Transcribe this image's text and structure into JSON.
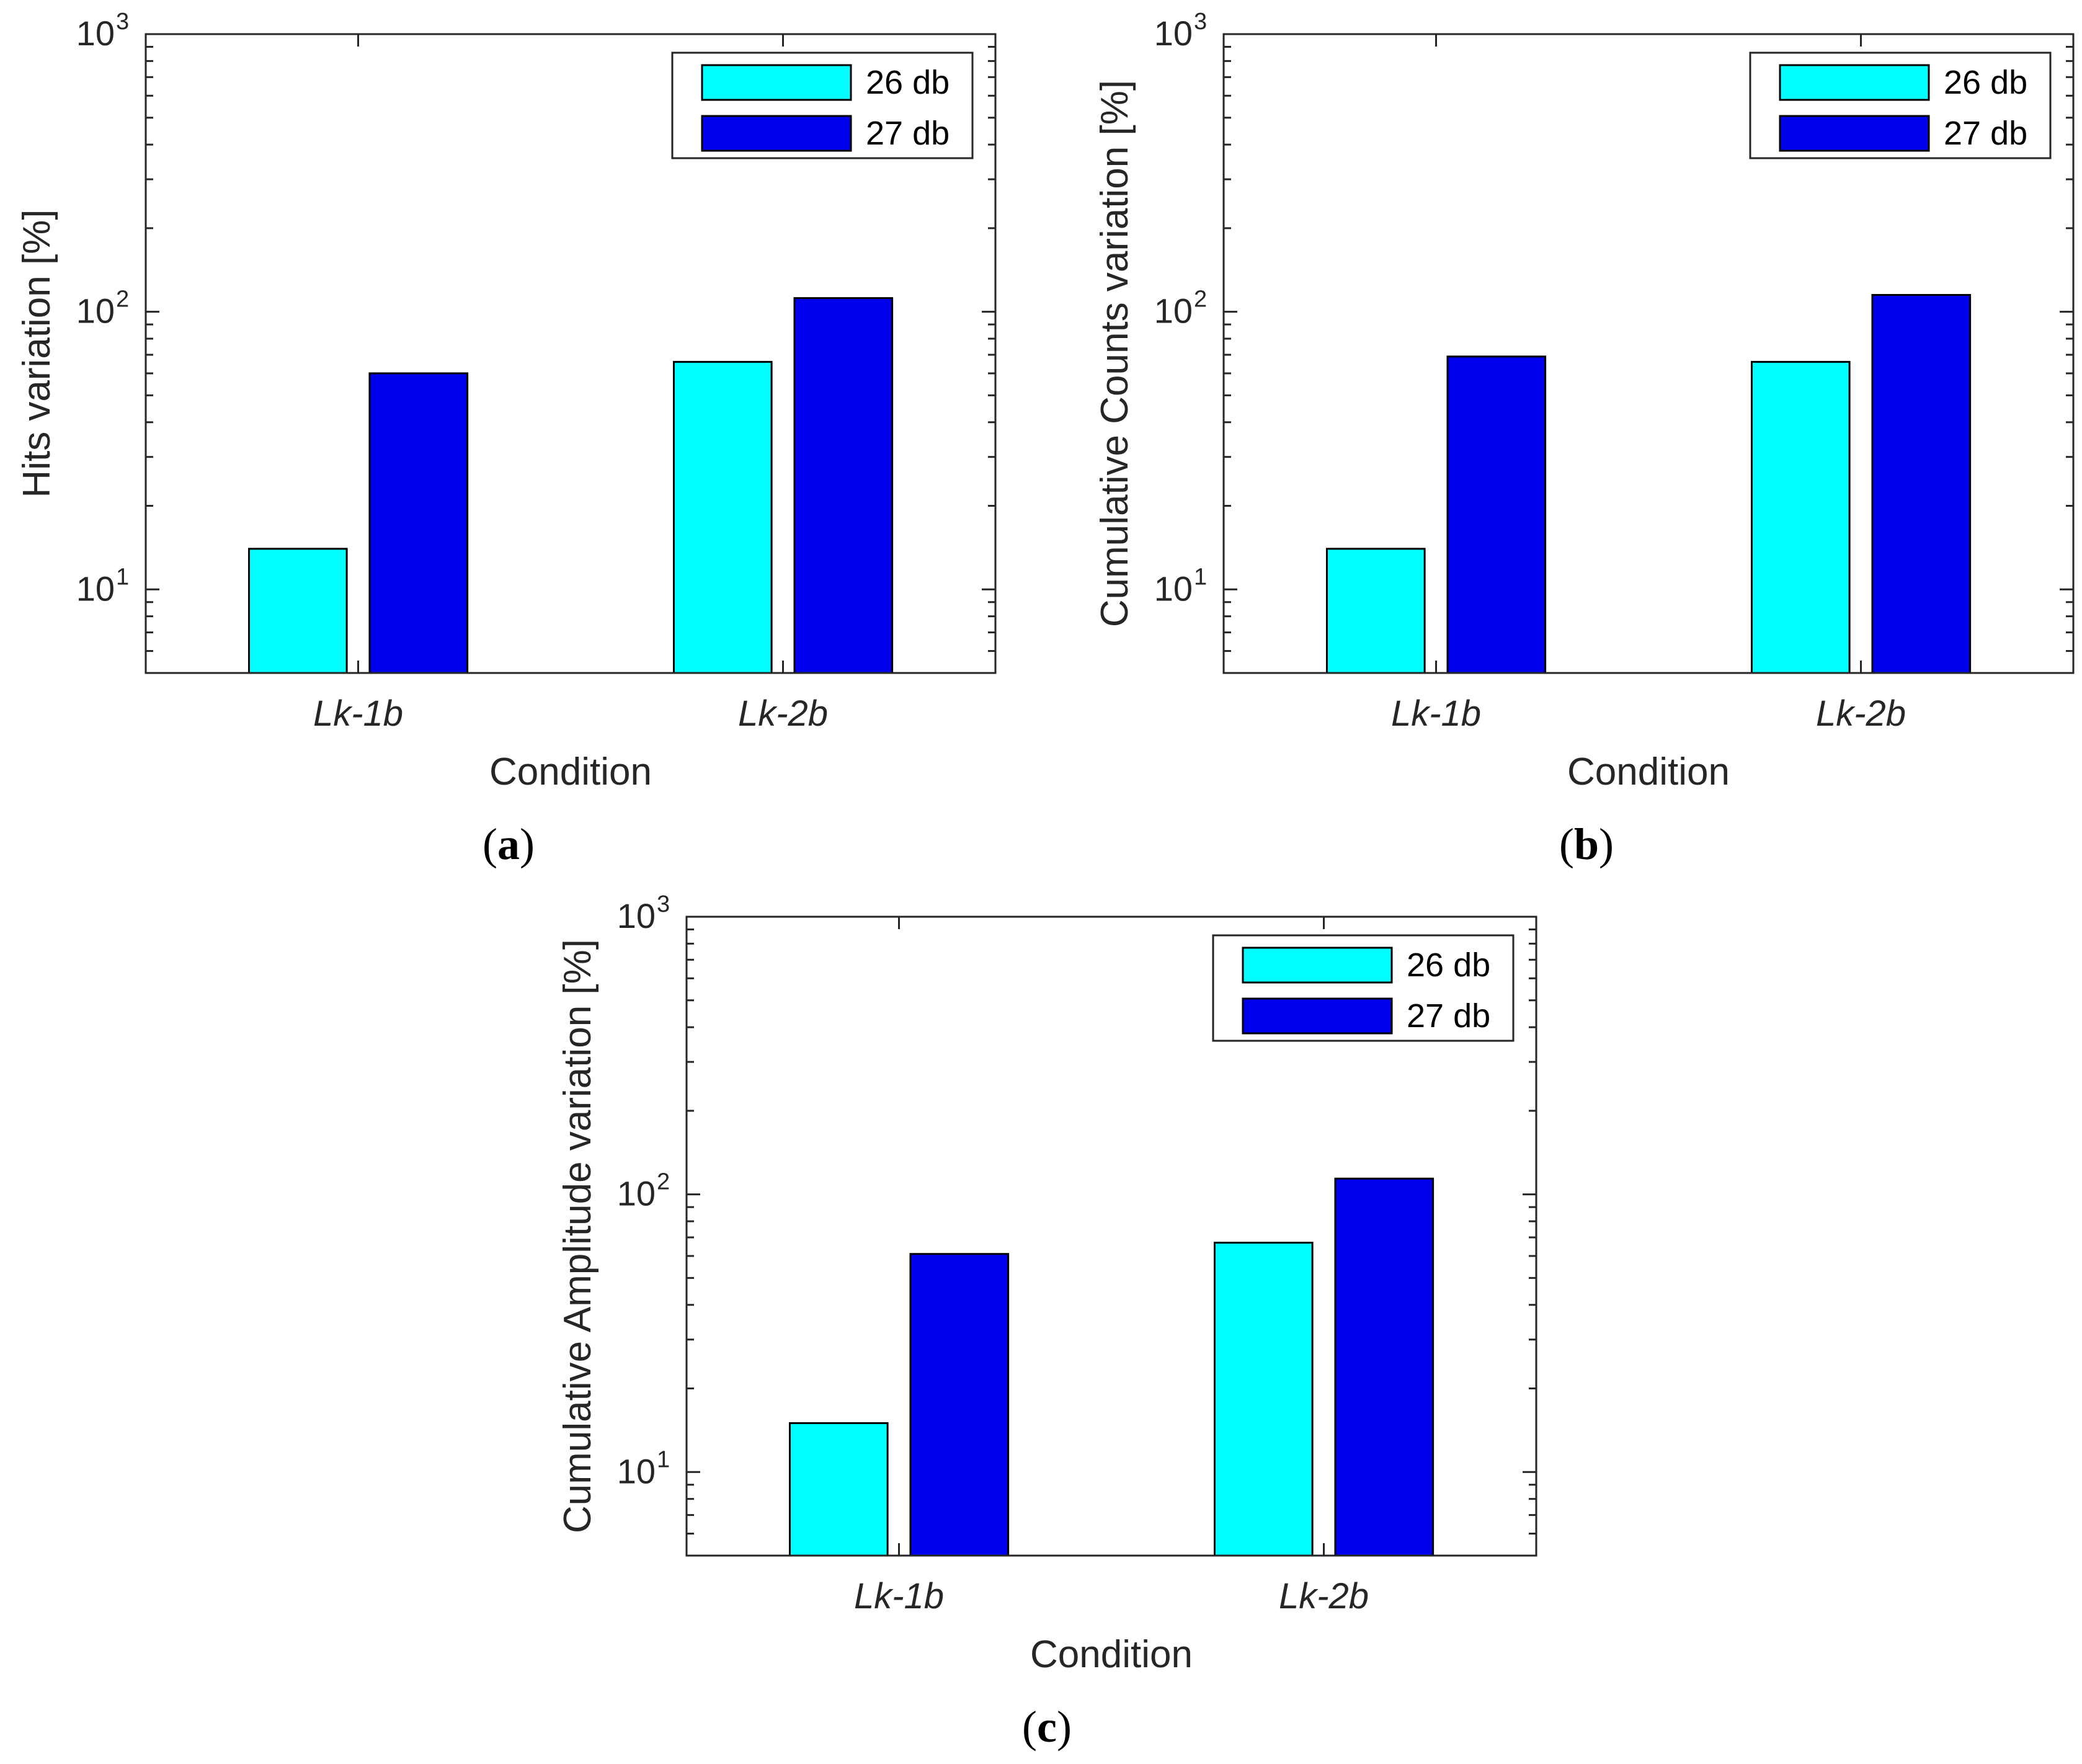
{
  "chart_data": [
    {
      "panel": "a",
      "type": "bar",
      "yscale": "log",
      "ylabel": "Hits variation [%]",
      "xlabel": "Condition",
      "categories": [
        "Lk-1b",
        "Lk-2b"
      ],
      "ylim": [
        5,
        1000
      ],
      "yticks": [
        {
          "base": "10",
          "exp": "1"
        },
        {
          "base": "10",
          "exp": "2"
        },
        {
          "base": "10",
          "exp": "3"
        }
      ],
      "legend_position": "top-right",
      "series": [
        {
          "name": "26 db",
          "color": "#00FFFF",
          "values": [
            14,
            66
          ]
        },
        {
          "name": "27 db",
          "color": "#0000EE",
          "values": [
            60,
            112
          ]
        }
      ]
    },
    {
      "panel": "b",
      "type": "bar",
      "yscale": "log",
      "ylabel": "Cumulative Counts variation [%]",
      "xlabel": "Condition",
      "categories": [
        "Lk-1b",
        "Lk-2b"
      ],
      "ylim": [
        5,
        1000
      ],
      "yticks": [
        {
          "base": "10",
          "exp": "1"
        },
        {
          "base": "10",
          "exp": "2"
        },
        {
          "base": "10",
          "exp": "3"
        }
      ],
      "legend_position": "top-right",
      "series": [
        {
          "name": "26 db",
          "color": "#00FFFF",
          "values": [
            14,
            66
          ]
        },
        {
          "name": "27 db",
          "color": "#0000EE",
          "values": [
            69,
            115
          ]
        }
      ]
    },
    {
      "panel": "c",
      "type": "bar",
      "yscale": "log",
      "ylabel": "Cumulative Amplitude variation [%]",
      "xlabel": "Condition",
      "categories": [
        "Lk-1b",
        "Lk-2b"
      ],
      "ylim": [
        5,
        1000
      ],
      "yticks": [
        {
          "base": "10",
          "exp": "1"
        },
        {
          "base": "10",
          "exp": "2"
        },
        {
          "base": "10",
          "exp": "3"
        }
      ],
      "legend_position": "top-right",
      "series": [
        {
          "name": "26 db",
          "color": "#00FFFF",
          "values": [
            15,
            67
          ]
        },
        {
          "name": "27 db",
          "color": "#0000EE",
          "values": [
            61,
            114
          ]
        }
      ]
    }
  ],
  "captions": [
    {
      "open": "(",
      "letter": "a",
      "close": ")"
    },
    {
      "open": "(",
      "letter": "b",
      "close": ")"
    },
    {
      "open": "(",
      "letter": "c",
      "close": ")"
    }
  ]
}
